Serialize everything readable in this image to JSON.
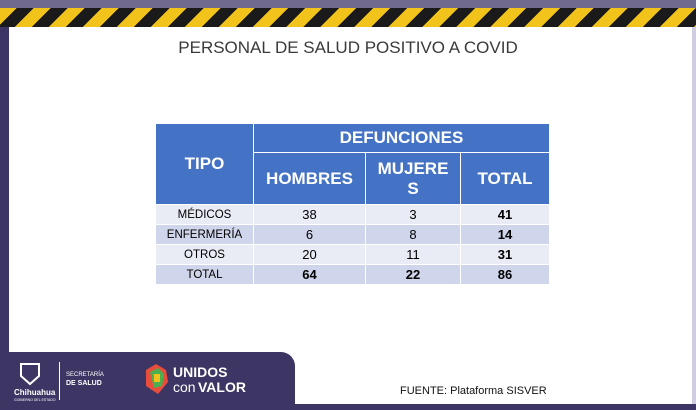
{
  "slide": {
    "title": "PERSONAL DE SALUD POSITIVO A COVID",
    "table": {
      "header": {
        "tipo": "TIPO",
        "group": "DEFUNCIONES",
        "columns": [
          "HOMBRES",
          "MUJERES",
          "TOTAL"
        ]
      },
      "rows": [
        [
          "MÉDICOS",
          38,
          3,
          41
        ],
        [
          "ENFERMERÍA",
          6,
          8,
          14
        ],
        [
          "OTROS",
          20,
          11,
          31
        ],
        [
          "TOTAL",
          64,
          22,
          86
        ]
      ]
    },
    "source": "FUENTE: Plataforma SISVER",
    "footer": {
      "state": "Chihuahua",
      "state_sub": "GOBIERNO DEL ESTADO",
      "secretaria": "SECRETARÍA",
      "salud": "DE SALUD",
      "unidos": "UNIDOS",
      "con": "con",
      "valor": "VALOR"
    }
  }
}
